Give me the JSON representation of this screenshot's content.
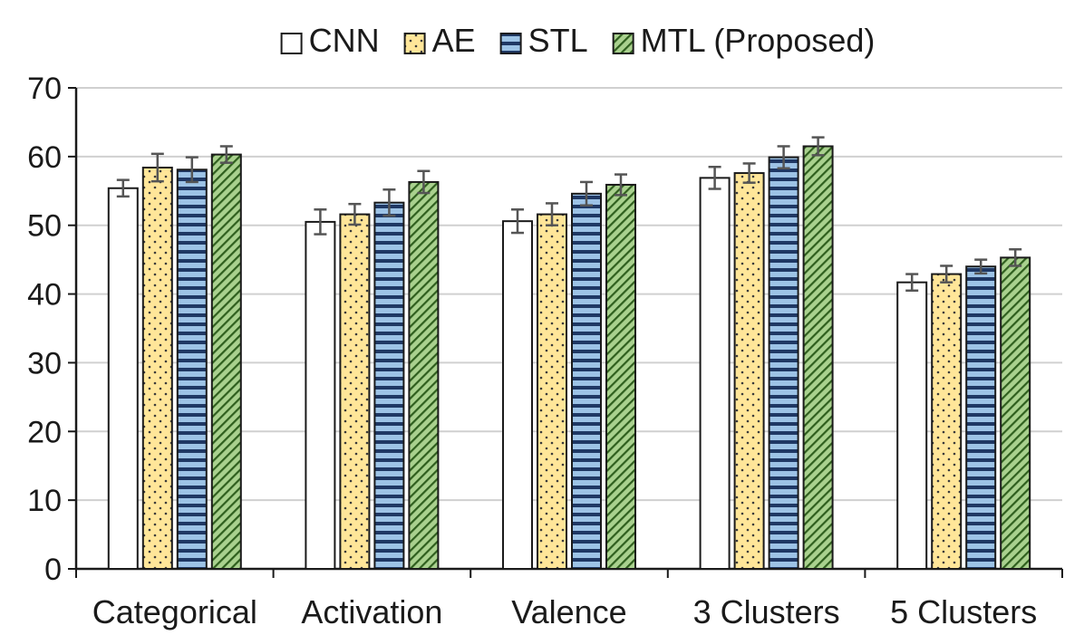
{
  "chart_data": {
    "type": "bar",
    "categories": [
      "Categorical",
      "Activation",
      "Valence",
      "3 Clusters",
      "5 Clusters"
    ],
    "series": [
      {
        "name": "CNN",
        "values": [
          55.4,
          50.5,
          50.6,
          56.9,
          41.7
        ],
        "errors": [
          1.2,
          1.8,
          1.7,
          1.6,
          1.2
        ],
        "color": "#ffffff",
        "pattern": "none"
      },
      {
        "name": "AE",
        "values": [
          58.4,
          51.6,
          51.6,
          57.6,
          42.9
        ],
        "errors": [
          2.0,
          1.5,
          1.6,
          1.4,
          1.2
        ],
        "color": "#ffe699",
        "pattern": "dots"
      },
      {
        "name": "STL",
        "values": [
          58.1,
          53.3,
          54.6,
          59.9,
          44.0
        ],
        "errors": [
          1.8,
          1.9,
          1.7,
          1.6,
          1.0
        ],
        "color": "#9dc3e6",
        "pattern": "horizontal-stripes"
      },
      {
        "name": "MTL (Proposed)",
        "values": [
          60.3,
          56.3,
          55.9,
          61.5,
          45.3
        ],
        "errors": [
          1.2,
          1.6,
          1.5,
          1.3,
          1.2
        ],
        "color": "#a9d18e",
        "pattern": "diagonal-stripes"
      }
    ],
    "yticks": [
      "0",
      "10",
      "20",
      "30",
      "40",
      "50",
      "60",
      "70"
    ],
    "ylim": [
      0,
      70
    ],
    "grid": true,
    "legend_position": "top-center",
    "title": "",
    "xlabel": "",
    "ylabel": ""
  }
}
